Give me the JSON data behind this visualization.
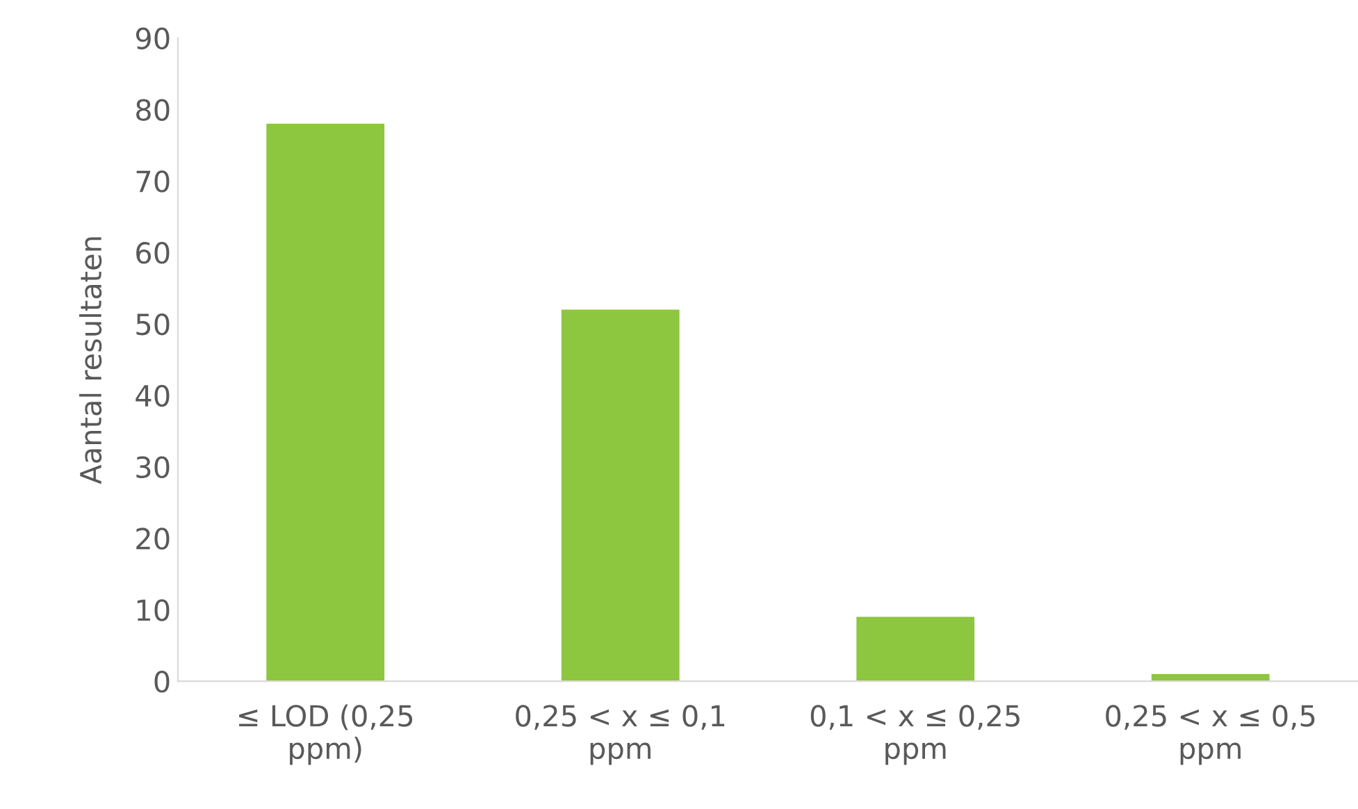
{
  "chart_data": {
    "type": "bar",
    "ylabel": "Aantal resultaten",
    "categories": [
      "≤ LOD (0,25 ppm)",
      "0,25 < x ≤ 0,1 ppm",
      "0,1 < x ≤ 0,25 ppm",
      "0,25 < x ≤ 0,5 ppm"
    ],
    "values": [
      78,
      52,
      9,
      1
    ],
    "color": "#8dc63f",
    "ylim": [
      0,
      90
    ],
    "yticks": [
      0,
      10,
      20,
      30,
      40,
      50,
      60,
      70,
      80,
      90
    ],
    "grid": false,
    "legend": false
  }
}
